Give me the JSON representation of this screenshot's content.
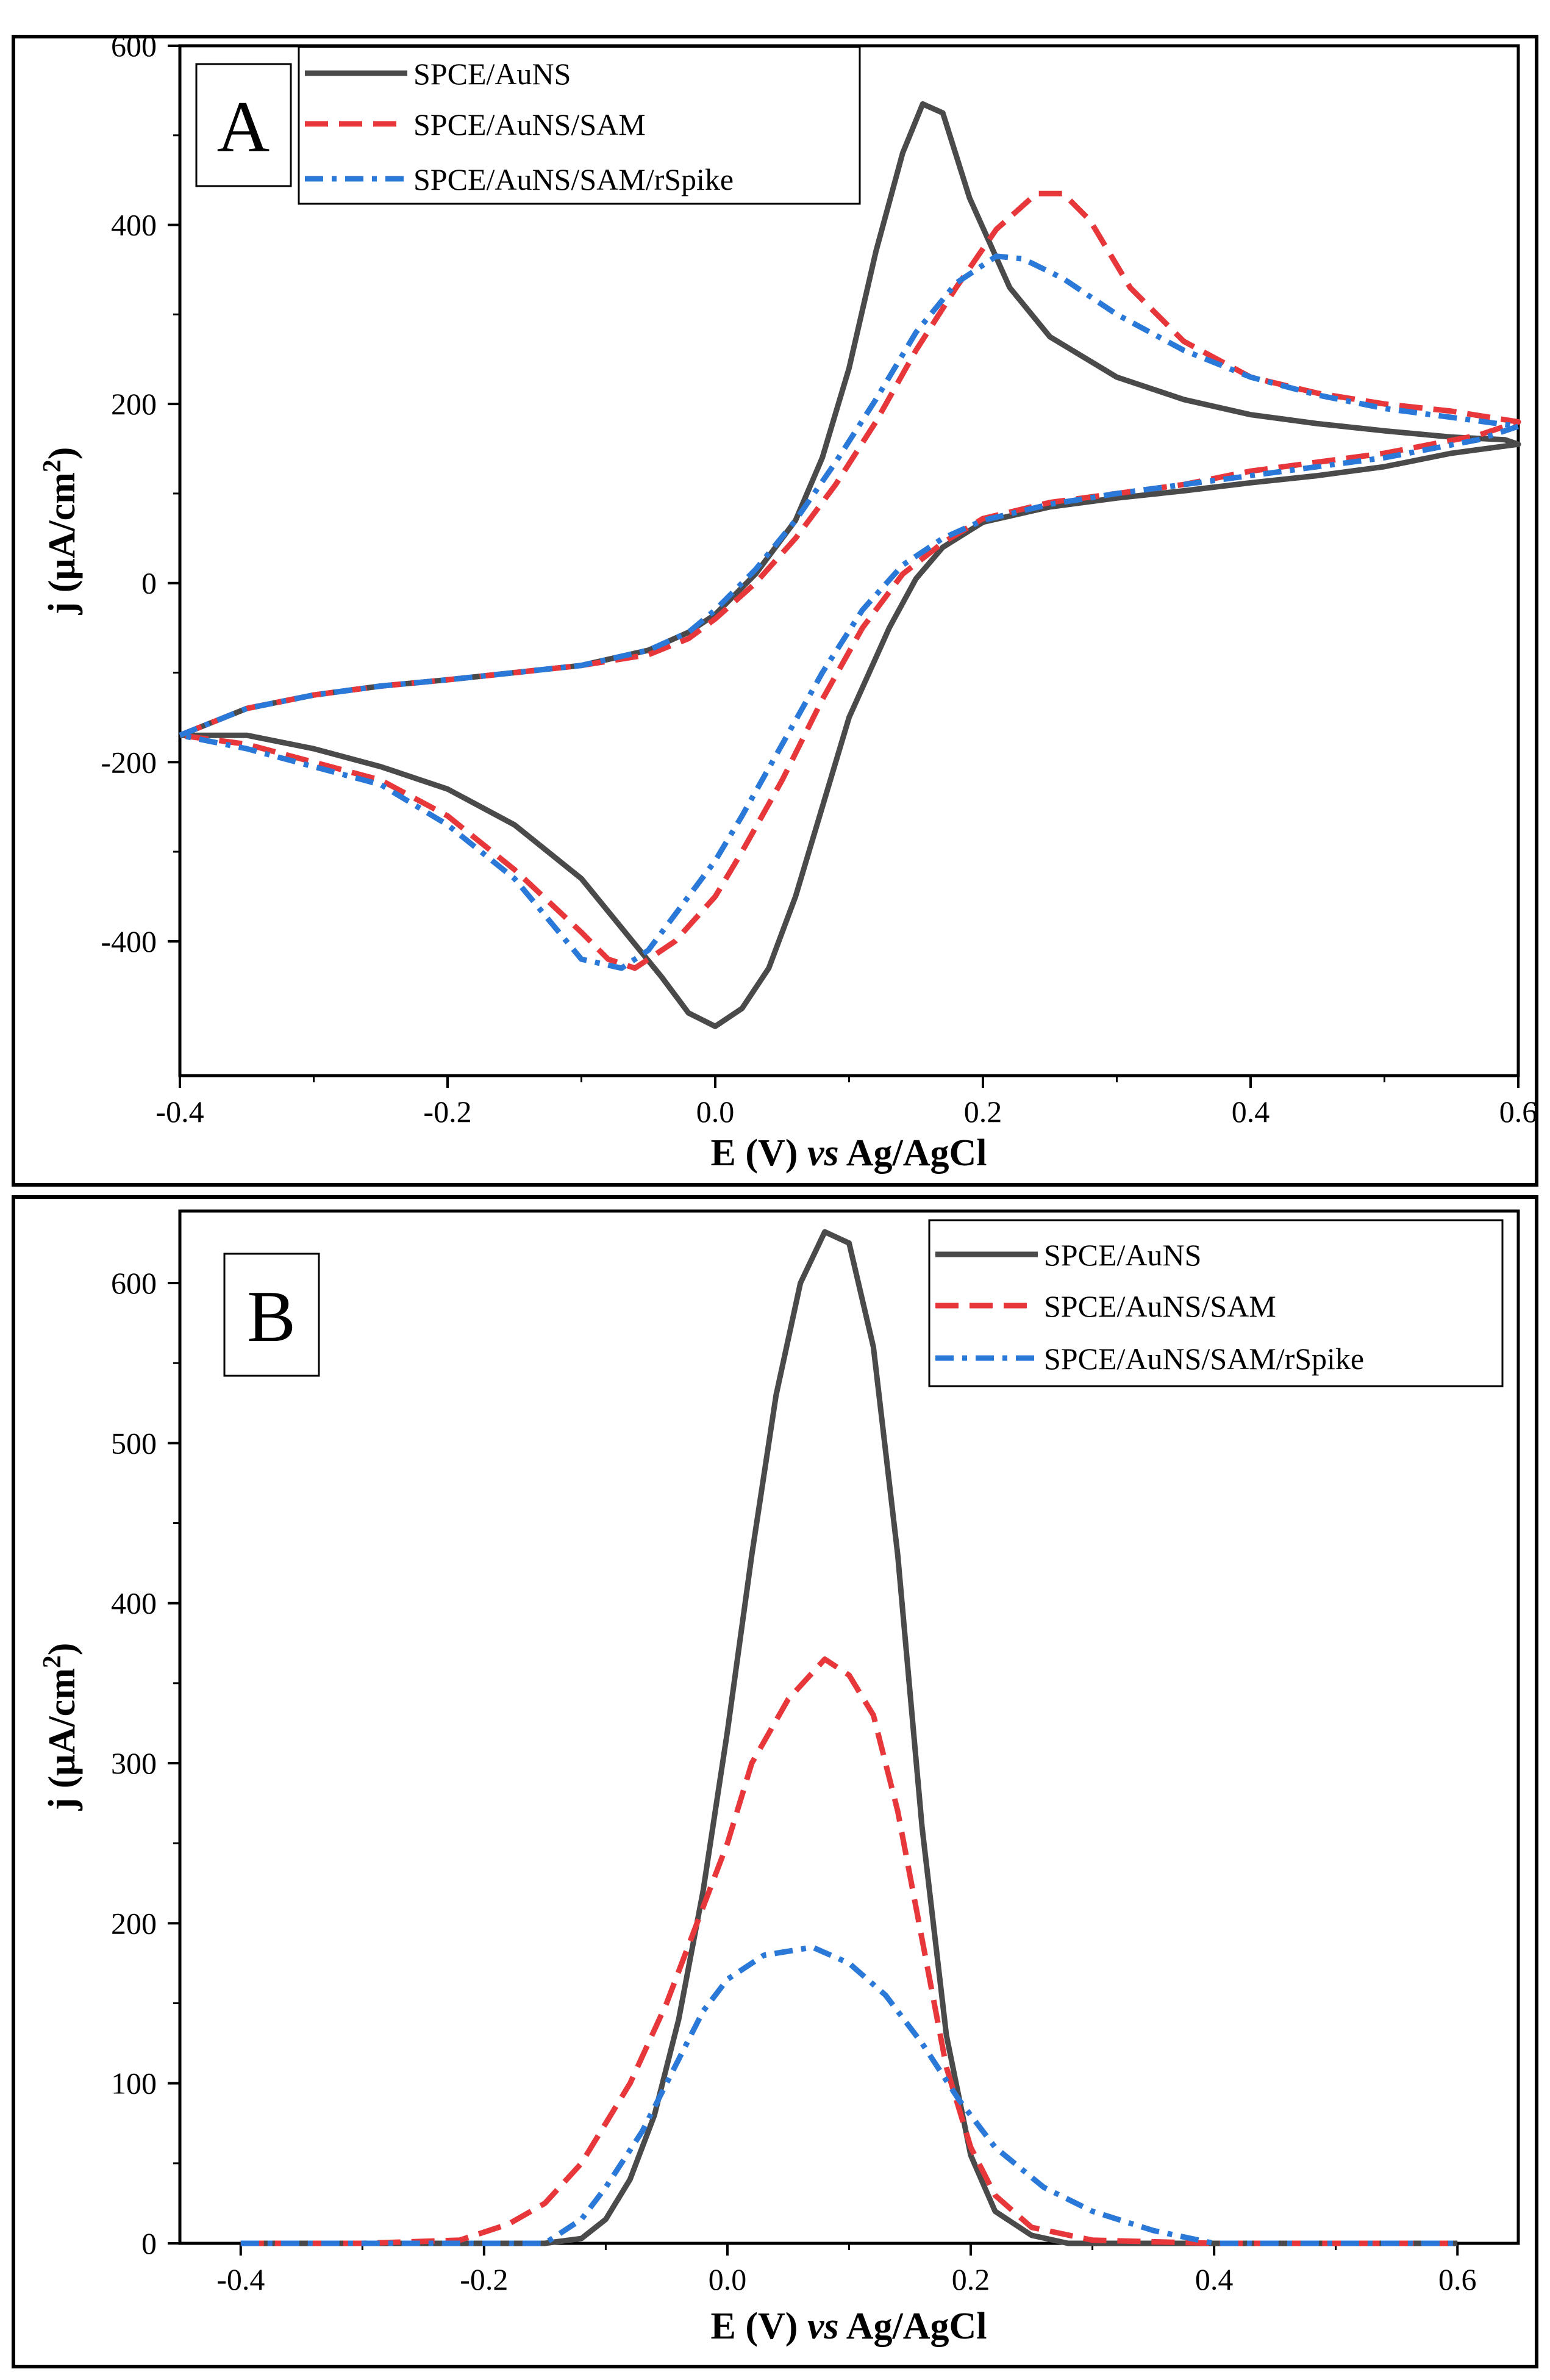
{
  "chart_data": [
    {
      "type": "line",
      "panel_label": "A",
      "title": "",
      "xlabel": {
        "main": "E (V) ",
        "italic": "vs",
        "suffix": " Ag/AgCl"
      },
      "ylabel": {
        "main": "j (μA/cm",
        "sup": "2",
        "suffix": ")"
      },
      "xlim": [
        -0.4,
        0.6
      ],
      "ylim": [
        -550,
        600
      ],
      "x_ticks": [
        -0.4,
        -0.2,
        0.0,
        0.2,
        0.4,
        0.6
      ],
      "x_tick_labels": [
        "-0.4",
        "-0.2",
        "0.0",
        "0.2",
        "0.4",
        "0.6"
      ],
      "y_ticks": [
        -400,
        -200,
        0,
        200,
        400,
        600
      ],
      "y_tick_labels": [
        "-400",
        "-200",
        "0",
        "200",
        "400",
        "600"
      ],
      "legend_position": "top-left",
      "series": [
        {
          "name": "SPCE/AuNS",
          "color": "#4a4a4a",
          "style": "solid",
          "points": [
            [
              -0.4,
              -170
            ],
            [
              -0.35,
              -140
            ],
            [
              -0.3,
              -125
            ],
            [
              -0.25,
              -115
            ],
            [
              -0.2,
              -108
            ],
            [
              -0.15,
              -100
            ],
            [
              -0.1,
              -92
            ],
            [
              -0.05,
              -75
            ],
            [
              -0.02,
              -55
            ],
            [
              0.0,
              -35
            ],
            [
              0.03,
              10
            ],
            [
              0.06,
              70
            ],
            [
              0.08,
              140
            ],
            [
              0.1,
              240
            ],
            [
              0.12,
              370
            ],
            [
              0.14,
              480
            ],
            [
              0.155,
              535
            ],
            [
              0.17,
              525
            ],
            [
              0.19,
              430
            ],
            [
              0.22,
              330
            ],
            [
              0.25,
              275
            ],
            [
              0.3,
              230
            ],
            [
              0.35,
              205
            ],
            [
              0.4,
              188
            ],
            [
              0.45,
              178
            ],
            [
              0.5,
              170
            ],
            [
              0.55,
              163
            ],
            [
              0.59,
              160
            ],
            [
              0.6,
              155
            ],
            [
              0.6,
              155
            ],
            [
              0.55,
              145
            ],
            [
              0.5,
              130
            ],
            [
              0.45,
              120
            ],
            [
              0.4,
              112
            ],
            [
              0.35,
              103
            ],
            [
              0.3,
              95
            ],
            [
              0.25,
              85
            ],
            [
              0.2,
              68
            ],
            [
              0.17,
              40
            ],
            [
              0.15,
              5
            ],
            [
              0.13,
              -50
            ],
            [
              0.1,
              -150
            ],
            [
              0.08,
              -250
            ],
            [
              0.06,
              -350
            ],
            [
              0.04,
              -430
            ],
            [
              0.02,
              -475
            ],
            [
              0.0,
              -495
            ],
            [
              -0.02,
              -480
            ],
            [
              -0.04,
              -440
            ],
            [
              -0.07,
              -385
            ],
            [
              -0.1,
              -330
            ],
            [
              -0.15,
              -270
            ],
            [
              -0.2,
              -230
            ],
            [
              -0.25,
              -205
            ],
            [
              -0.3,
              -185
            ],
            [
              -0.35,
              -170
            ],
            [
              -0.4,
              -170
            ]
          ]
        },
        {
          "name": "SPCE/AuNS/SAM",
          "color": "#e8373a",
          "style": "dashed",
          "points": [
            [
              -0.4,
              -170
            ],
            [
              -0.35,
              -140
            ],
            [
              -0.3,
              -125
            ],
            [
              -0.25,
              -115
            ],
            [
              -0.2,
              -108
            ],
            [
              -0.15,
              -100
            ],
            [
              -0.1,
              -92
            ],
            [
              -0.05,
              -80
            ],
            [
              -0.02,
              -62
            ],
            [
              0.0,
              -40
            ],
            [
              0.03,
              0
            ],
            [
              0.06,
              50
            ],
            [
              0.09,
              110
            ],
            [
              0.12,
              180
            ],
            [
              0.15,
              260
            ],
            [
              0.18,
              330
            ],
            [
              0.21,
              395
            ],
            [
              0.24,
              435
            ],
            [
              0.26,
              435
            ],
            [
              0.28,
              405
            ],
            [
              0.31,
              330
            ],
            [
              0.35,
              270
            ],
            [
              0.4,
              230
            ],
            [
              0.45,
              212
            ],
            [
              0.5,
              200
            ],
            [
              0.55,
              192
            ],
            [
              0.6,
              180
            ],
            [
              0.6,
              180
            ],
            [
              0.57,
              165
            ],
            [
              0.5,
              145
            ],
            [
              0.45,
              135
            ],
            [
              0.4,
              125
            ],
            [
              0.35,
              110
            ],
            [
              0.3,
              100
            ],
            [
              0.25,
              90
            ],
            [
              0.2,
              72
            ],
            [
              0.17,
              45
            ],
            [
              0.14,
              10
            ],
            [
              0.11,
              -50
            ],
            [
              0.08,
              -130
            ],
            [
              0.05,
              -220
            ],
            [
              0.02,
              -300
            ],
            [
              0.0,
              -350
            ],
            [
              -0.03,
              -400
            ],
            [
              -0.06,
              -430
            ],
            [
              -0.08,
              -420
            ],
            [
              -0.1,
              -390
            ],
            [
              -0.15,
              -320
            ],
            [
              -0.2,
              -260
            ],
            [
              -0.25,
              -220
            ],
            [
              -0.3,
              -200
            ],
            [
              -0.35,
              -180
            ],
            [
              -0.4,
              -170
            ]
          ]
        },
        {
          "name": "SPCE/AuNS/SAM/rSpike",
          "color": "#2a78d8",
          "style": "dashdot",
          "points": [
            [
              -0.4,
              -170
            ],
            [
              -0.35,
              -140
            ],
            [
              -0.3,
              -125
            ],
            [
              -0.25,
              -115
            ],
            [
              -0.2,
              -108
            ],
            [
              -0.15,
              -100
            ],
            [
              -0.1,
              -92
            ],
            [
              -0.05,
              -75
            ],
            [
              -0.02,
              -55
            ],
            [
              0.0,
              -30
            ],
            [
              0.03,
              15
            ],
            [
              0.06,
              70
            ],
            [
              0.09,
              135
            ],
            [
              0.12,
              205
            ],
            [
              0.15,
              280
            ],
            [
              0.18,
              335
            ],
            [
              0.21,
              365
            ],
            [
              0.23,
              362
            ],
            [
              0.26,
              340
            ],
            [
              0.3,
              300
            ],
            [
              0.35,
              260
            ],
            [
              0.4,
              230
            ],
            [
              0.45,
              210
            ],
            [
              0.5,
              195
            ],
            [
              0.55,
              185
            ],
            [
              0.6,
              175
            ],
            [
              0.6,
              175
            ],
            [
              0.57,
              160
            ],
            [
              0.5,
              140
            ],
            [
              0.45,
              130
            ],
            [
              0.4,
              120
            ],
            [
              0.35,
              110
            ],
            [
              0.3,
              100
            ],
            [
              0.25,
              88
            ],
            [
              0.2,
              70
            ],
            [
              0.17,
              50
            ],
            [
              0.14,
              20
            ],
            [
              0.11,
              -30
            ],
            [
              0.08,
              -100
            ],
            [
              0.05,
              -180
            ],
            [
              0.02,
              -260
            ],
            [
              0.0,
              -310
            ],
            [
              -0.03,
              -370
            ],
            [
              -0.05,
              -410
            ],
            [
              -0.07,
              -430
            ],
            [
              -0.1,
              -420
            ],
            [
              -0.15,
              -330
            ],
            [
              -0.2,
              -270
            ],
            [
              -0.25,
              -225
            ],
            [
              -0.3,
              -205
            ],
            [
              -0.35,
              -185
            ],
            [
              -0.4,
              -170
            ]
          ]
        }
      ]
    },
    {
      "type": "line",
      "panel_label": "B",
      "title": "",
      "xlabel": {
        "main": "E (V) ",
        "italic": "vs",
        "suffix": " Ag/AgCl"
      },
      "ylabel": {
        "main": "j (μA/cm",
        "sup": "2",
        "suffix": ")"
      },
      "xlim": [
        -0.45,
        0.65
      ],
      "ylim": [
        0,
        645
      ],
      "x_ticks": [
        -0.4,
        -0.2,
        0.0,
        0.2,
        0.4,
        0.6
      ],
      "x_tick_labels": [
        "-0.4",
        "-0.2",
        "0.0",
        "0.2",
        "0.4",
        "0.6"
      ],
      "y_ticks": [
        0,
        100,
        200,
        300,
        400,
        500,
        600
      ],
      "y_tick_labels": [
        "0",
        "100",
        "200",
        "300",
        "400",
        "500",
        "600"
      ],
      "legend_position": "top-right",
      "series": [
        {
          "name": "SPCE/AuNS",
          "color": "#4a4a4a",
          "style": "solid",
          "points": [
            [
              -0.4,
              0
            ],
            [
              -0.3,
              0
            ],
            [
              -0.15,
              0
            ],
            [
              -0.12,
              3
            ],
            [
              -0.1,
              15
            ],
            [
              -0.08,
              40
            ],
            [
              -0.06,
              80
            ],
            [
              -0.04,
              140
            ],
            [
              -0.02,
              220
            ],
            [
              0.0,
              320
            ],
            [
              0.02,
              430
            ],
            [
              0.04,
              530
            ],
            [
              0.06,
              600
            ],
            [
              0.08,
              632
            ],
            [
              0.1,
              625
            ],
            [
              0.12,
              560
            ],
            [
              0.14,
              430
            ],
            [
              0.16,
              260
            ],
            [
              0.18,
              130
            ],
            [
              0.2,
              55
            ],
            [
              0.22,
              20
            ],
            [
              0.25,
              5
            ],
            [
              0.28,
              0
            ],
            [
              0.4,
              0
            ],
            [
              0.6,
              0
            ]
          ]
        },
        {
          "name": "SPCE/AuNS/SAM",
          "color": "#e8373a",
          "style": "dashed",
          "points": [
            [
              -0.4,
              0
            ],
            [
              -0.3,
              0
            ],
            [
              -0.22,
              2
            ],
            [
              -0.18,
              12
            ],
            [
              -0.15,
              25
            ],
            [
              -0.12,
              50
            ],
            [
              -0.08,
              100
            ],
            [
              -0.05,
              150
            ],
            [
              -0.02,
              210
            ],
            [
              0.0,
              250
            ],
            [
              0.02,
              300
            ],
            [
              0.05,
              340
            ],
            [
              0.08,
              365
            ],
            [
              0.1,
              355
            ],
            [
              0.12,
              330
            ],
            [
              0.14,
              270
            ],
            [
              0.16,
              190
            ],
            [
              0.18,
              110
            ],
            [
              0.2,
              60
            ],
            [
              0.22,
              30
            ],
            [
              0.25,
              10
            ],
            [
              0.3,
              2
            ],
            [
              0.4,
              0
            ],
            [
              0.6,
              0
            ]
          ]
        },
        {
          "name": "SPCE/AuNS/SAM/rSpike",
          "color": "#2a78d8",
          "style": "dashdot",
          "points": [
            [
              -0.4,
              0
            ],
            [
              -0.3,
              0
            ],
            [
              -0.15,
              0
            ],
            [
              -0.12,
              15
            ],
            [
              -0.1,
              35
            ],
            [
              -0.07,
              70
            ],
            [
              -0.04,
              115
            ],
            [
              -0.02,
              145
            ],
            [
              0.0,
              165
            ],
            [
              0.03,
              180
            ],
            [
              0.07,
              185
            ],
            [
              0.1,
              175
            ],
            [
              0.13,
              155
            ],
            [
              0.16,
              125
            ],
            [
              0.19,
              90
            ],
            [
              0.22,
              60
            ],
            [
              0.26,
              35
            ],
            [
              0.3,
              20
            ],
            [
              0.35,
              8
            ],
            [
              0.4,
              0
            ],
            [
              0.6,
              0
            ]
          ]
        }
      ]
    }
  ]
}
